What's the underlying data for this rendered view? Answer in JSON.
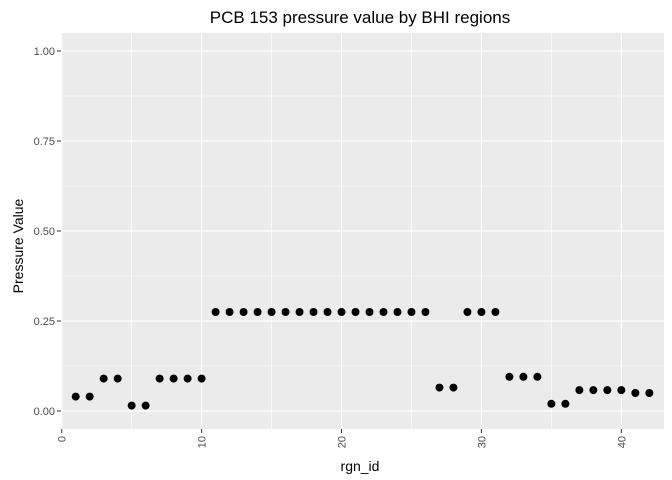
{
  "chart_data": {
    "type": "scatter",
    "title": "PCB 153 pressure value by BHI regions",
    "xlabel": "rgn_id",
    "ylabel": "Pressure Value",
    "xlim": [
      -0.05,
      43.05
    ],
    "ylim": [
      -0.05,
      1.05
    ],
    "x_ticks": [
      0,
      10,
      20,
      30,
      40
    ],
    "x_minor": [
      5,
      15,
      25,
      35
    ],
    "y_ticks": [
      0.0,
      0.25,
      0.5,
      0.75,
      1.0
    ],
    "y_tick_labels": [
      "0.00",
      "0.25",
      "0.50",
      "0.75",
      "1.00"
    ],
    "y_minor": [
      0.125,
      0.375,
      0.625,
      0.875
    ],
    "grid": true,
    "panel_color": "#ebebeb",
    "grid_color": "#ffffff",
    "point_color": "#000000",
    "x": [
      1,
      2,
      3,
      4,
      5,
      6,
      7,
      8,
      9,
      10,
      11,
      12,
      13,
      14,
      15,
      16,
      17,
      18,
      19,
      20,
      21,
      22,
      23,
      24,
      25,
      26,
      27,
      28,
      29,
      30,
      31,
      32,
      33,
      34,
      35,
      36,
      37,
      38,
      39,
      40,
      41,
      42
    ],
    "y": [
      0.04,
      0.04,
      0.09,
      0.09,
      0.015,
      0.015,
      0.09,
      0.09,
      0.09,
      0.09,
      0.275,
      0.275,
      0.275,
      0.275,
      0.275,
      0.275,
      0.275,
      0.275,
      0.275,
      0.275,
      0.275,
      0.275,
      0.275,
      0.275,
      0.275,
      0.275,
      0.065,
      0.065,
      0.275,
      0.275,
      0.275,
      0.095,
      0.095,
      0.095,
      0.02,
      0.02,
      0.058,
      0.058,
      0.058,
      0.058,
      0.05,
      0.05
    ]
  }
}
